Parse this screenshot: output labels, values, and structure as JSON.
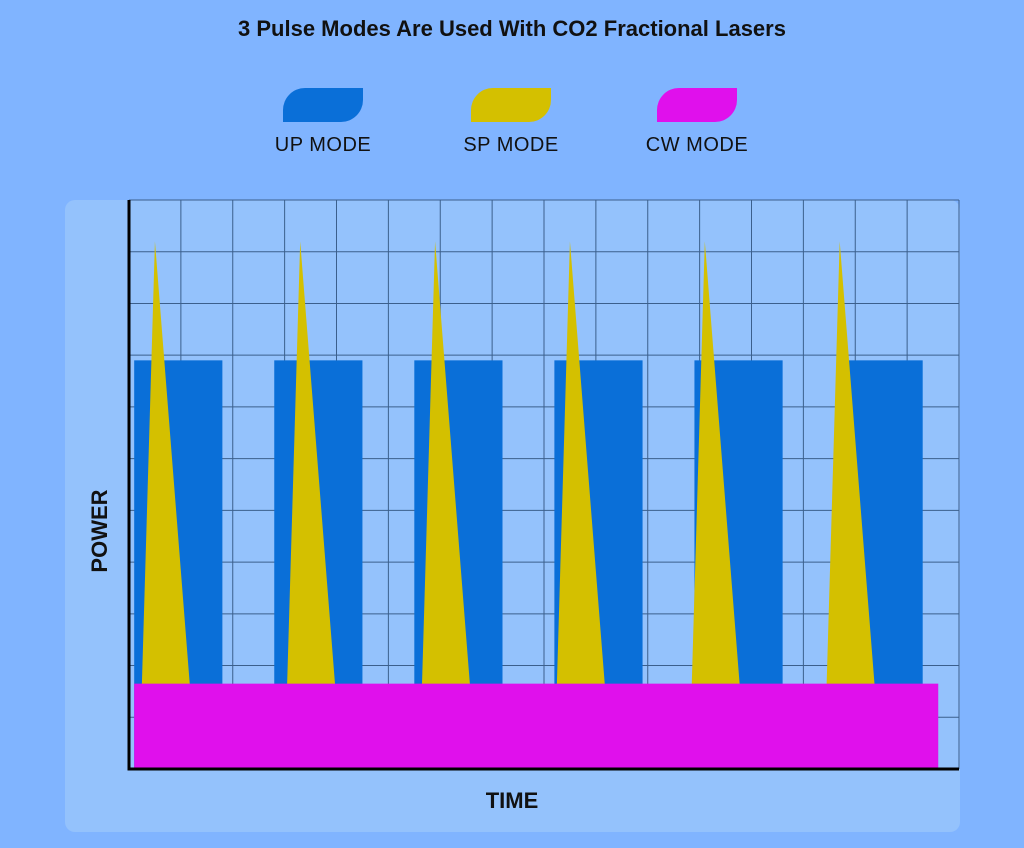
{
  "chart_data": {
    "type": "area",
    "title": "3 Pulse Modes Are Used With CO2 Fractional Lasers",
    "xlabel": "TIME",
    "ylabel": "POWER",
    "grid": true,
    "legend": "top",
    "series": [
      {
        "name": "UP MODE",
        "color": "#0a6fd8",
        "shape": "rectangular pulses",
        "pulses": [
          {
            "start": 0.1,
            "end": 1.8,
            "level": 7.9
          },
          {
            "start": 2.8,
            "end": 4.5,
            "level": 7.9
          },
          {
            "start": 5.5,
            "end": 7.2,
            "level": 7.9
          },
          {
            "start": 8.2,
            "end": 9.9,
            "level": 7.9
          },
          {
            "start": 10.9,
            "end": 12.6,
            "level": 7.9
          },
          {
            "start": 13.8,
            "end": 15.3,
            "level": 7.9
          }
        ]
      },
      {
        "name": "SP MODE",
        "color": "#d4c000",
        "shape": "triangular spikes",
        "pulses": [
          {
            "start": 0.2,
            "peak_at": 0.5,
            "end": 1.3,
            "peak": 10.2
          },
          {
            "start": 3.0,
            "peak_at": 3.3,
            "end": 4.1,
            "peak": 10.2
          },
          {
            "start": 5.6,
            "peak_at": 5.9,
            "end": 6.7,
            "peak": 10.2
          },
          {
            "start": 8.2,
            "peak_at": 8.5,
            "end": 9.3,
            "peak": 10.2
          },
          {
            "start": 10.8,
            "peak_at": 11.1,
            "end": 11.9,
            "peak": 10.2
          },
          {
            "start": 13.4,
            "peak_at": 13.7,
            "end": 14.5,
            "peak": 10.2
          }
        ]
      },
      {
        "name": "CW MODE",
        "color": "#e010ec",
        "shape": "continuous",
        "pulses": [
          {
            "start": 0.1,
            "end": 15.6,
            "level": 1.65
          }
        ]
      }
    ],
    "xlim": [
      0,
      16
    ],
    "ylim": [
      0,
      11
    ]
  }
}
